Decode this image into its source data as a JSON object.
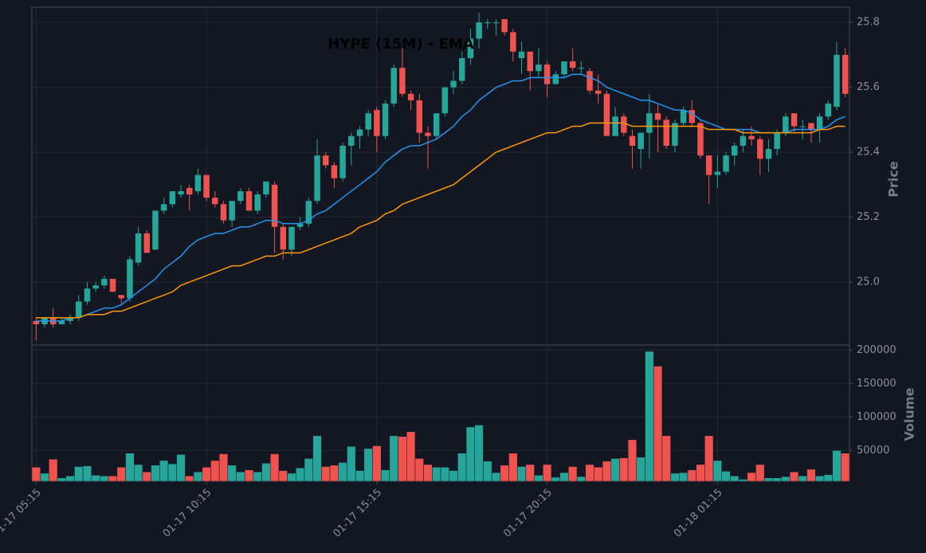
{
  "chart_data": {
    "type": "candlestick",
    "title": "HYPE (15M) - EMA",
    "ylabel": "Price",
    "up_color": "#26a69a",
    "down_color": "#ef5350",
    "categories": [
      "01-17 05:15",
      null,
      null,
      null,
      null,
      null,
      null,
      null,
      null,
      null,
      null,
      null,
      null,
      null,
      null,
      null,
      null,
      null,
      null,
      null,
      "01-17 10:15",
      null,
      null,
      null,
      null,
      null,
      null,
      null,
      null,
      null,
      null,
      null,
      null,
      null,
      null,
      null,
      null,
      null,
      null,
      null,
      "01-17 15:15",
      null,
      null,
      null,
      null,
      null,
      null,
      null,
      null,
      null,
      null,
      null,
      null,
      null,
      null,
      null,
      null,
      null,
      null,
      null,
      "01-17 20:15",
      null,
      null,
      null,
      null,
      null,
      null,
      null,
      null,
      null,
      null,
      null,
      null,
      null,
      null,
      null,
      null,
      null,
      null,
      null,
      "01-18 01:15",
      null,
      null,
      null,
      null,
      null,
      null,
      null,
      null,
      null,
      null,
      null,
      null,
      null,
      null,
      null
    ],
    "open": [
      24.88,
      24.87,
      24.89,
      24.87,
      24.88,
      24.89,
      24.94,
      24.98,
      24.99,
      25.01,
      24.96,
      24.95,
      25.06,
      25.15,
      25.1,
      25.22,
      25.24,
      25.27,
      25.29,
      25.28,
      25.33,
      25.26,
      25.24,
      25.19,
      25.25,
      25.28,
      25.22,
      25.27,
      25.3,
      25.17,
      25.1,
      25.17,
      25.18,
      25.25,
      25.39,
      25.36,
      25.32,
      25.42,
      25.45,
      25.47,
      25.53,
      25.45,
      25.55,
      25.66,
      25.58,
      25.56,
      25.46,
      25.45,
      25.52,
      25.6,
      25.62,
      25.69,
      25.75,
      25.8,
      25.8,
      25.81,
      25.77,
      25.69,
      25.71,
      25.65,
      25.67,
      25.61,
      25.64,
      25.68,
      25.66,
      25.65,
      25.59,
      25.58,
      25.45,
      25.51,
      25.45,
      25.41,
      25.46,
      25.52,
      25.5,
      25.42,
      25.49,
      25.53,
      25.49,
      25.39,
      25.33,
      25.34,
      25.39,
      25.42,
      25.45,
      25.44,
      25.38,
      25.41,
      25.46,
      25.52,
      25.48,
      25.49,
      25.47,
      25.51,
      25.54,
      25.7
    ],
    "high": [
      24.89,
      24.89,
      24.92,
      24.89,
      24.9,
      24.96,
      25.0,
      25.0,
      25.02,
      25.01,
      24.96,
      25.08,
      25.17,
      25.16,
      25.22,
      25.26,
      25.28,
      25.3,
      25.3,
      25.35,
      25.33,
      25.28,
      25.25,
      25.25,
      25.29,
      25.29,
      25.28,
      25.31,
      25.31,
      25.18,
      25.17,
      25.2,
      25.26,
      25.44,
      25.4,
      25.37,
      25.43,
      25.46,
      25.48,
      25.53,
      25.54,
      25.56,
      25.67,
      25.72,
      25.59,
      25.58,
      25.48,
      25.52,
      25.6,
      25.65,
      25.71,
      25.78,
      25.83,
      25.81,
      25.81,
      25.81,
      25.78,
      25.74,
      25.71,
      25.72,
      25.68,
      25.65,
      25.68,
      25.72,
      25.68,
      25.66,
      25.64,
      25.59,
      25.54,
      25.52,
      25.47,
      25.46,
      25.58,
      25.55,
      25.51,
      25.5,
      25.54,
      25.56,
      25.5,
      25.39,
      25.39,
      25.4,
      25.43,
      25.47,
      25.48,
      25.45,
      25.44,
      25.47,
      25.52,
      25.52,
      25.5,
      25.49,
      25.52,
      25.56,
      25.74,
      25.72
    ],
    "low": [
      24.82,
      24.86,
      24.86,
      24.87,
      24.87,
      24.88,
      24.93,
      24.97,
      24.98,
      24.97,
      24.93,
      24.94,
      25.05,
      25.09,
      25.1,
      25.21,
      25.23,
      25.26,
      25.22,
      25.27,
      25.25,
      25.23,
      25.18,
      25.17,
      25.24,
      25.22,
      25.21,
      25.26,
      25.09,
      25.07,
      25.08,
      25.16,
      25.17,
      25.24,
      25.35,
      25.29,
      25.31,
      25.36,
      25.41,
      25.45,
      25.4,
      25.44,
      25.54,
      25.57,
      25.53,
      25.43,
      25.35,
      25.44,
      25.51,
      25.58,
      25.61,
      25.67,
      25.72,
      25.78,
      25.76,
      25.76,
      25.68,
      25.64,
      25.59,
      25.63,
      25.57,
      25.61,
      25.63,
      25.65,
      25.64,
      25.58,
      25.55,
      25.45,
      25.45,
      25.45,
      25.35,
      25.35,
      25.38,
      25.4,
      25.41,
      25.4,
      25.48,
      25.48,
      25.38,
      25.24,
      25.29,
      25.33,
      25.36,
      25.4,
      25.42,
      25.33,
      25.34,
      25.39,
      25.45,
      25.46,
      25.44,
      25.43,
      25.43,
      25.5,
      25.53,
      25.57
    ],
    "close": [
      24.87,
      24.89,
      24.87,
      24.88,
      24.89,
      24.94,
      24.98,
      24.99,
      25.01,
      24.97,
      24.95,
      25.07,
      25.15,
      25.09,
      25.22,
      25.24,
      25.28,
      25.28,
      25.27,
      25.33,
      25.26,
      25.24,
      25.19,
      25.25,
      25.28,
      25.22,
      25.27,
      25.31,
      25.17,
      25.1,
      25.17,
      25.18,
      25.25,
      25.39,
      25.36,
      25.32,
      25.42,
      25.45,
      25.47,
      25.52,
      25.45,
      25.55,
      25.66,
      25.58,
      25.56,
      25.46,
      25.45,
      25.52,
      25.6,
      25.62,
      25.69,
      25.75,
      25.8,
      25.8,
      25.8,
      25.77,
      25.71,
      25.71,
      25.65,
      25.67,
      25.61,
      25.64,
      25.68,
      25.66,
      25.66,
      25.59,
      25.58,
      25.45,
      25.51,
      25.46,
      25.42,
      25.46,
      25.52,
      25.5,
      25.42,
      25.49,
      25.53,
      25.49,
      25.39,
      25.33,
      25.34,
      25.39,
      25.42,
      25.45,
      25.44,
      25.38,
      25.41,
      25.46,
      25.51,
      25.48,
      25.48,
      25.47,
      25.51,
      25.55,
      25.7,
      25.58
    ],
    "ema": [
      {
        "color": "#2196f3",
        "values": [
          24.88,
          24.88,
          24.88,
          24.88,
          24.89,
          24.89,
          24.9,
          24.91,
          24.92,
          24.92,
          24.93,
          24.95,
          24.97,
          24.99,
          25.01,
          25.04,
          25.06,
          25.08,
          25.11,
          25.13,
          25.14,
          25.15,
          25.15,
          25.16,
          25.17,
          25.17,
          25.18,
          25.19,
          25.19,
          25.18,
          25.18,
          25.18,
          25.19,
          25.21,
          25.22,
          25.24,
          25.26,
          25.28,
          25.3,
          25.32,
          25.34,
          25.37,
          25.39,
          25.41,
          25.42,
          25.42,
          25.43,
          25.44,
          25.46,
          25.48,
          25.51,
          25.53,
          25.56,
          25.58,
          25.6,
          25.61,
          25.62,
          25.62,
          25.63,
          25.63,
          25.63,
          25.63,
          25.63,
          25.64,
          25.64,
          25.63,
          25.62,
          25.6,
          25.59,
          25.58,
          25.57,
          25.56,
          25.56,
          25.55,
          25.54,
          25.53,
          25.53,
          25.52,
          25.5,
          25.49,
          25.48,
          25.47,
          25.47,
          25.47,
          25.47,
          25.46,
          25.46,
          25.46,
          25.46,
          25.47,
          25.47,
          25.47,
          25.47,
          25.48,
          25.5,
          25.51
        ]
      },
      {
        "color": "#ff9800",
        "values": [
          24.89,
          24.89,
          24.89,
          24.89,
          24.89,
          24.89,
          24.9,
          24.9,
          24.9,
          24.91,
          24.91,
          24.92,
          24.93,
          24.94,
          24.95,
          24.96,
          24.97,
          24.99,
          25.0,
          25.01,
          25.02,
          25.03,
          25.04,
          25.05,
          25.05,
          25.06,
          25.07,
          25.08,
          25.08,
          25.09,
          25.09,
          25.09,
          25.1,
          25.11,
          25.12,
          25.13,
          25.14,
          25.15,
          25.17,
          25.18,
          25.19,
          25.21,
          25.22,
          25.24,
          25.25,
          25.26,
          25.27,
          25.28,
          25.29,
          25.3,
          25.32,
          25.34,
          25.36,
          25.38,
          25.4,
          25.41,
          25.42,
          25.43,
          25.44,
          25.45,
          25.46,
          25.46,
          25.47,
          25.48,
          25.48,
          25.49,
          25.49,
          25.49,
          25.49,
          25.49,
          25.48,
          25.48,
          25.48,
          25.48,
          25.48,
          25.48,
          25.48,
          25.48,
          25.48,
          25.47,
          25.47,
          25.47,
          25.47,
          25.46,
          25.46,
          25.46,
          25.46,
          25.46,
          25.46,
          25.46,
          25.46,
          25.46,
          25.47,
          25.47,
          25.48,
          25.48
        ]
      }
    ],
    "ylim": [
      24.806,
      25.847
    ],
    "yticks": [
      {
        "value": 25,
        "label": "25.0"
      },
      25.2,
      25.4,
      25.6,
      25.8
    ],
    "grid": true,
    "volume": {
      "ylabel": "Volume",
      "values": [
        25000,
        16000,
        37000,
        9000,
        12000,
        26000,
        27000,
        13000,
        12000,
        12000,
        25000,
        46000,
        29000,
        18000,
        28000,
        35000,
        30000,
        44000,
        12000,
        18000,
        25000,
        35000,
        45000,
        28000,
        18000,
        21000,
        18000,
        31000,
        45000,
        20000,
        16000,
        24000,
        38000,
        72000,
        26000,
        28000,
        32000,
        56000,
        20000,
        53000,
        57000,
        21000,
        72000,
        71000,
        78000,
        38000,
        29000,
        25000,
        25000,
        20000,
        46000,
        85000,
        88000,
        34000,
        17000,
        28000,
        46000,
        26000,
        29000,
        13000,
        29000,
        10000,
        17000,
        26000,
        11000,
        29000,
        25000,
        34000,
        38000,
        39000,
        66000,
        40000,
        198000,
        176000,
        72000,
        16000,
        17000,
        21000,
        29000,
        72000,
        35000,
        19000,
        12000,
        7000,
        17000,
        29000,
        9000,
        9000,
        11000,
        18000,
        12000,
        22000,
        12000,
        14000,
        50000,
        46000
      ],
      "ylim": [
        4000,
        207500
      ],
      "yticks": [
        50000,
        100000,
        150000,
        200000
      ]
    }
  }
}
